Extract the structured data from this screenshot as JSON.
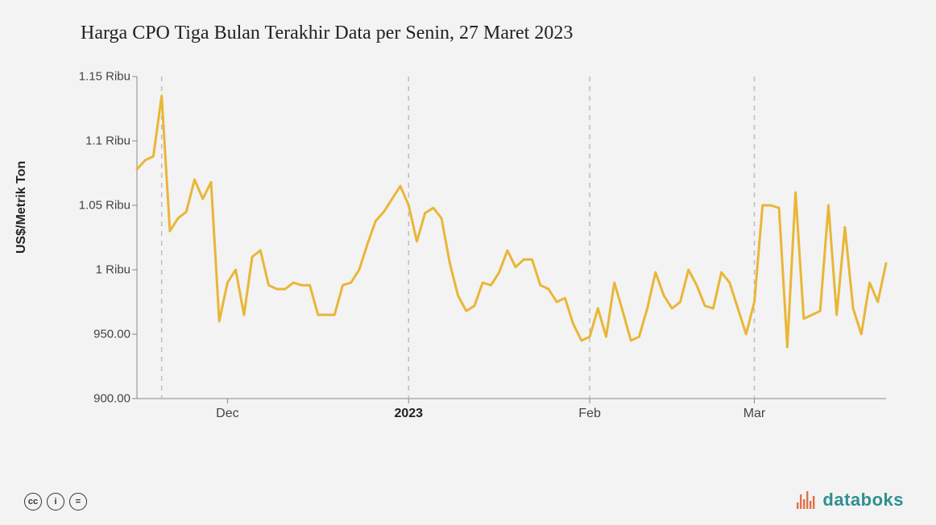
{
  "title": "Harga CPO Tiga Bulan Terakhir Data per Senin, 27 Maret 2023",
  "y_axis_label": "US$/Metrik Ton",
  "chart": {
    "type": "line",
    "background_color": "#f3f3f3",
    "line_color": "#e9b636",
    "line_width": 3,
    "grid_color": "#bdbdbd",
    "grid_dash": "6,6",
    "axis_color": "#888888",
    "text_color": "#444444",
    "y_min": 900,
    "y_max": 1150,
    "y_ticks": [
      {
        "value": 900,
        "label": "900.00"
      },
      {
        "value": 950,
        "label": "950.00"
      },
      {
        "value": 1000,
        "label": "1 Ribu"
      },
      {
        "value": 1050,
        "label": "1.05 Ribu"
      },
      {
        "value": 1100,
        "label": "1.1 Ribu"
      },
      {
        "value": 1150,
        "label": "1.15 Ribu"
      }
    ],
    "x_ticks": [
      {
        "index": 11,
        "label": "Dec",
        "bold": false
      },
      {
        "index": 33,
        "label": "2023",
        "bold": true
      },
      {
        "index": 55,
        "label": "Feb",
        "bold": false
      },
      {
        "index": 75,
        "label": "Mar",
        "bold": false
      }
    ],
    "vgrid_indices": [
      3,
      33,
      55,
      75
    ],
    "n_points": 92,
    "series": [
      1078,
      1085,
      1088,
      1135,
      1030,
      1040,
      1045,
      1070,
      1055,
      1068,
      960,
      990,
      1000,
      965,
      1010,
      1015,
      988,
      985,
      985,
      990,
      988,
      988,
      965,
      965,
      965,
      988,
      990,
      1000,
      1020,
      1038,
      1045,
      1055,
      1065,
      1050,
      1022,
      1044,
      1048,
      1040,
      1005,
      980,
      968,
      972,
      990,
      988,
      998,
      1015,
      1002,
      1008,
      1008,
      988,
      985,
      975,
      978,
      958,
      945,
      948,
      970,
      948,
      990,
      968,
      945,
      948,
      970,
      998,
      980,
      970,
      975,
      1000,
      988,
      972,
      970,
      998,
      990,
      970,
      950,
      975,
      1050,
      1050,
      1048,
      940,
      1060,
      962,
      965,
      968,
      1050,
      965,
      1033,
      970,
      950,
      990,
      975,
      1005
    ]
  },
  "footer": {
    "cc_labels": [
      "cc",
      "i",
      "="
    ]
  },
  "brand": {
    "text": "databoks",
    "icon_color": "#e36f4a",
    "text_color": "#2f8f91"
  }
}
